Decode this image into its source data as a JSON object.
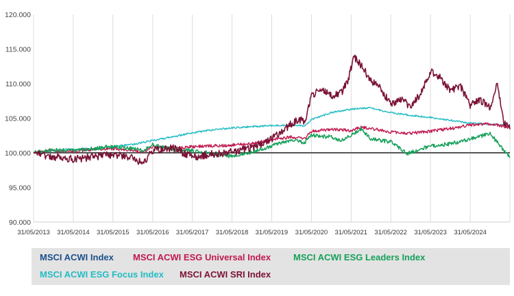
{
  "chart_data": {
    "type": "line",
    "ylim": [
      90,
      120
    ],
    "y_ticks": [
      "120.000",
      "115.000",
      "110.000",
      "105.000",
      "100.000",
      "95.000",
      "90.000"
    ],
    "y_tick_values": [
      120,
      115,
      110,
      105,
      100,
      95,
      90
    ],
    "x_ticks": [
      "31/05/2013",
      "31/05/2014",
      "31/05/2015",
      "31/05/2016",
      "31/05/2017",
      "31/05/2018",
      "31/05/2019",
      "31/05/2020",
      "31/05/2021",
      "31/05/2022",
      "31/05/2023",
      "31/05/2024"
    ],
    "x_start": "2013-05-31",
    "x_end": "2025-05-31",
    "baseline": 100,
    "grid": "vertical",
    "legend_position": "bottom",
    "series": [
      {
        "name": "MSCI ACWI Index",
        "color": "#1b4f8a",
        "x": [
          "2013-05-31",
          "2025-05-31"
        ],
        "y": [
          100,
          100
        ]
      },
      {
        "name": "MSCI ACWI ESG Universal Index",
        "color": "#c0194e",
        "x": [
          "2013-05-31",
          "2013-10-31",
          "2014-05-31",
          "2014-11-30",
          "2015-05-31",
          "2015-11-30",
          "2016-02-28",
          "2016-05-31",
          "2016-11-30",
          "2017-05-31",
          "2017-11-30",
          "2018-05-31",
          "2018-11-30",
          "2019-05-31",
          "2019-11-30",
          "2020-03-31",
          "2020-05-31",
          "2020-11-30",
          "2021-05-31",
          "2021-08-31",
          "2021-11-30",
          "2022-05-31",
          "2022-10-31",
          "2023-05-31",
          "2023-11-30",
          "2024-05-31",
          "2024-11-30",
          "2025-03-31",
          "2025-05-31"
        ],
        "y": [
          100.0,
          100.3,
          100.2,
          100.5,
          100.6,
          100.4,
          100.1,
          100.9,
          100.6,
          100.9,
          101.0,
          101.1,
          101.3,
          101.9,
          102.3,
          102.0,
          103.1,
          103.4,
          103.2,
          103.7,
          103.5,
          103.0,
          102.8,
          103.1,
          103.5,
          104.0,
          104.2,
          103.8,
          103.6
        ]
      },
      {
        "name": "MSCI ACWI ESG Leaders Index",
        "color": "#16a05a",
        "x": [
          "2013-05-31",
          "2013-10-31",
          "2014-05-31",
          "2014-11-30",
          "2015-05-31",
          "2015-11-30",
          "2016-02-28",
          "2016-05-31",
          "2016-11-30",
          "2017-05-31",
          "2017-11-30",
          "2018-02-28",
          "2018-05-31",
          "2018-11-30",
          "2019-05-31",
          "2019-11-30",
          "2020-03-31",
          "2020-05-31",
          "2020-11-30",
          "2021-02-28",
          "2021-05-31",
          "2021-08-31",
          "2021-11-30",
          "2022-05-31",
          "2022-10-31",
          "2023-05-31",
          "2023-11-30",
          "2024-05-31",
          "2024-11-30",
          "2025-02-28",
          "2025-05-31"
        ],
        "y": [
          100.0,
          100.4,
          100.3,
          100.6,
          100.9,
          100.6,
          100.3,
          101.2,
          100.5,
          100.3,
          99.9,
          99.6,
          99.5,
          100.1,
          101.0,
          101.8,
          101.5,
          102.5,
          102.3,
          101.8,
          102.6,
          103.5,
          102.0,
          101.6,
          99.9,
          101.0,
          101.3,
          102.0,
          102.8,
          101.0,
          99.3
        ]
      },
      {
        "name": "MSCI ACWI ESG Focus Index",
        "color": "#22bcc4",
        "x": [
          "2013-05-31",
          "2013-10-31",
          "2014-05-31",
          "2014-11-30",
          "2015-05-31",
          "2015-11-30",
          "2016-05-31",
          "2016-11-30",
          "2017-05-31",
          "2017-11-30",
          "2018-05-31",
          "2018-11-30",
          "2019-05-31",
          "2019-11-30",
          "2020-03-31",
          "2020-05-31",
          "2020-11-30",
          "2021-05-31",
          "2021-11-30",
          "2022-05-31",
          "2022-11-30",
          "2023-05-31",
          "2023-11-30",
          "2024-05-31",
          "2024-11-30",
          "2025-05-31"
        ],
        "y": [
          100.0,
          100.3,
          100.5,
          100.6,
          100.9,
          101.2,
          101.8,
          102.3,
          102.9,
          103.3,
          103.6,
          103.8,
          103.9,
          104.0,
          103.9,
          104.8,
          105.8,
          106.3,
          106.5,
          105.8,
          105.4,
          105.1,
          104.7,
          104.3,
          104.1,
          104.0
        ]
      },
      {
        "name": "MSCI ACWI SRI Index",
        "color": "#7a1235",
        "x": [
          "2013-05-31",
          "2013-08-31",
          "2014-02-28",
          "2014-05-31",
          "2014-11-30",
          "2015-05-31",
          "2015-11-30",
          "2016-02-28",
          "2016-05-31",
          "2016-11-30",
          "2017-05-31",
          "2017-11-30",
          "2018-05-31",
          "2018-11-30",
          "2019-05-31",
          "2019-09-30",
          "2019-11-30",
          "2020-01-31",
          "2020-03-31",
          "2020-05-31",
          "2020-08-31",
          "2020-11-30",
          "2021-02-28",
          "2021-04-30",
          "2021-06-30",
          "2021-08-31",
          "2021-11-30",
          "2022-02-28",
          "2022-05-31",
          "2022-08-31",
          "2022-11-30",
          "2023-02-28",
          "2023-05-31",
          "2023-08-31",
          "2023-11-30",
          "2024-02-28",
          "2024-05-31",
          "2024-08-31",
          "2024-11-30",
          "2025-01-31",
          "2025-03-31",
          "2025-05-31"
        ],
        "y": [
          100.0,
          99.6,
          99.3,
          99.1,
          99.4,
          99.8,
          99.3,
          98.4,
          100.3,
          100.7,
          99.4,
          99.8,
          100.1,
          100.7,
          102.0,
          103.5,
          104.2,
          104.9,
          104.5,
          108.3,
          109.2,
          108.3,
          108.6,
          110.4,
          113.9,
          112.6,
          110.5,
          109.3,
          106.9,
          107.6,
          106.8,
          108.5,
          111.8,
          110.9,
          109.0,
          109.8,
          106.9,
          107.7,
          106.5,
          110.2,
          104.6,
          103.4
        ]
      }
    ]
  },
  "legend": {
    "items": [
      {
        "label": "MSCI ACWI Index",
        "color": "#1b4f8a"
      },
      {
        "label": "MSCI ACWI ESG Universal Index",
        "color": "#c0194e"
      },
      {
        "label": "MSCI ACWI ESG Leaders Index",
        "color": "#16a05a"
      },
      {
        "label": "MSCI ACWI ESG Focus Index",
        "color": "#22bcc4"
      },
      {
        "label": "MSCI ACWI SRI Index",
        "color": "#7a1235"
      }
    ]
  }
}
